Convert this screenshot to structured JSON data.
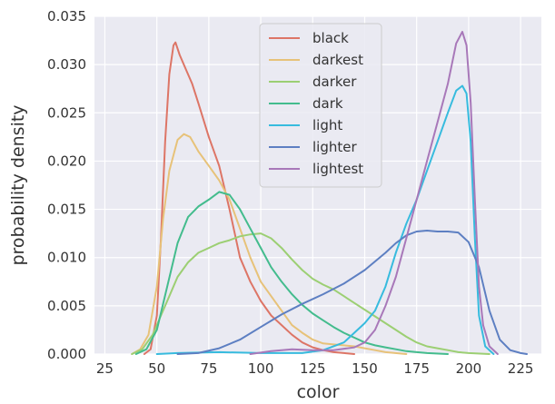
{
  "chart_data": {
    "type": "line",
    "title": "",
    "xlabel": "color",
    "ylabel": "probability density",
    "xlim": [
      20,
      235
    ],
    "ylim": [
      0,
      0.035
    ],
    "xticks": [
      25,
      50,
      75,
      100,
      125,
      150,
      175,
      200,
      225
    ],
    "xtick_labels": [
      "25",
      "50",
      "75",
      "100",
      "125",
      "150",
      "175",
      "200",
      "225"
    ],
    "yticks": [
      0,
      0.005,
      0.01,
      0.015,
      0.02,
      0.025,
      0.03,
      0.035
    ],
    "ytick_labels": [
      "0.000",
      "0.005",
      "0.010",
      "0.015",
      "0.020",
      "0.025",
      "0.030",
      "0.035"
    ],
    "grid": true,
    "legend_position": "top-center",
    "series": [
      {
        "name": "black",
        "color": "#dd7566",
        "points": [
          [
            44,
            0
          ],
          [
            47,
            0.0005
          ],
          [
            50,
            0.004
          ],
          [
            52,
            0.012
          ],
          [
            54,
            0.022
          ],
          [
            56,
            0.029
          ],
          [
            58,
            0.032
          ],
          [
            59,
            0.0323
          ],
          [
            61,
            0.031
          ],
          [
            64,
            0.0295
          ],
          [
            67,
            0.028
          ],
          [
            70,
            0.026
          ],
          [
            75,
            0.0225
          ],
          [
            80,
            0.0195
          ],
          [
            85,
            0.015
          ],
          [
            90,
            0.01
          ],
          [
            95,
            0.0075
          ],
          [
            100,
            0.0055
          ],
          [
            105,
            0.004
          ],
          [
            110,
            0.003
          ],
          [
            115,
            0.002
          ],
          [
            120,
            0.0012
          ],
          [
            125,
            0.0007
          ],
          [
            130,
            0.0004
          ],
          [
            135,
            0.0002
          ],
          [
            140,
            0.0001
          ],
          [
            145,
            0
          ]
        ]
      },
      {
        "name": "darkest",
        "color": "#e7c279",
        "points": [
          [
            38,
            0
          ],
          [
            42,
            0.0005
          ],
          [
            46,
            0.002
          ],
          [
            50,
            0.007
          ],
          [
            53,
            0.014
          ],
          [
            56,
            0.019
          ],
          [
            60,
            0.0222
          ],
          [
            63,
            0.0228
          ],
          [
            66,
            0.0225
          ],
          [
            70,
            0.021
          ],
          [
            75,
            0.0195
          ],
          [
            80,
            0.018
          ],
          [
            85,
            0.016
          ],
          [
            90,
            0.013
          ],
          [
            95,
            0.01
          ],
          [
            100,
            0.0075
          ],
          [
            105,
            0.006
          ],
          [
            110,
            0.0045
          ],
          [
            115,
            0.003
          ],
          [
            120,
            0.0022
          ],
          [
            125,
            0.0015
          ],
          [
            130,
            0.0011
          ],
          [
            135,
            0.001
          ],
          [
            140,
            0.0009
          ],
          [
            145,
            0.0008
          ],
          [
            150,
            0.0006
          ],
          [
            155,
            0.0004
          ],
          [
            160,
            0.0002
          ],
          [
            170,
            0
          ]
        ]
      },
      {
        "name": "darker",
        "color": "#9ccf73",
        "points": [
          [
            38,
            0
          ],
          [
            43,
            0.0005
          ],
          [
            48,
            0.002
          ],
          [
            52,
            0.004
          ],
          [
            56,
            0.006
          ],
          [
            60,
            0.008
          ],
          [
            65,
            0.0095
          ],
          [
            70,
            0.0105
          ],
          [
            75,
            0.011
          ],
          [
            80,
            0.0115
          ],
          [
            85,
            0.0118
          ],
          [
            90,
            0.0122
          ],
          [
            95,
            0.0124
          ],
          [
            100,
            0.0125
          ],
          [
            105,
            0.012
          ],
          [
            110,
            0.011
          ],
          [
            115,
            0.0098
          ],
          [
            120,
            0.0087
          ],
          [
            125,
            0.0078
          ],
          [
            130,
            0.0072
          ],
          [
            135,
            0.0067
          ],
          [
            140,
            0.006
          ],
          [
            145,
            0.0053
          ],
          [
            150,
            0.0046
          ],
          [
            155,
            0.0039
          ],
          [
            160,
            0.0032
          ],
          [
            165,
            0.0025
          ],
          [
            170,
            0.0018
          ],
          [
            175,
            0.0012
          ],
          [
            180,
            0.0008
          ],
          [
            185,
            0.0006
          ],
          [
            190,
            0.0004
          ],
          [
            195,
            0.0002
          ],
          [
            200,
            0.0001
          ],
          [
            210,
            0
          ]
        ]
      },
      {
        "name": "dark",
        "color": "#43bc8d",
        "points": [
          [
            40,
            0
          ],
          [
            45,
            0.0005
          ],
          [
            50,
            0.0025
          ],
          [
            55,
            0.007
          ],
          [
            60,
            0.0115
          ],
          [
            65,
            0.0142
          ],
          [
            70,
            0.0153
          ],
          [
            75,
            0.016
          ],
          [
            80,
            0.0168
          ],
          [
            85,
            0.0165
          ],
          [
            90,
            0.015
          ],
          [
            95,
            0.013
          ],
          [
            100,
            0.011
          ],
          [
            105,
            0.009
          ],
          [
            110,
            0.0075
          ],
          [
            115,
            0.0062
          ],
          [
            120,
            0.0051
          ],
          [
            125,
            0.0042
          ],
          [
            130,
            0.0035
          ],
          [
            135,
            0.0028
          ],
          [
            140,
            0.0022
          ],
          [
            145,
            0.0017
          ],
          [
            150,
            0.0012
          ],
          [
            155,
            0.0009
          ],
          [
            160,
            0.0007
          ],
          [
            165,
            0.0005
          ],
          [
            170,
            0.0003
          ],
          [
            175,
            0.0002
          ],
          [
            180,
            0.0001
          ],
          [
            190,
            0
          ]
        ]
      },
      {
        "name": "light",
        "color": "#37bbde",
        "points": [
          [
            50,
            0
          ],
          [
            60,
            0.0001
          ],
          [
            80,
            0.0002
          ],
          [
            100,
            0.0001
          ],
          [
            120,
            0.0001
          ],
          [
            130,
            0.0004
          ],
          [
            140,
            0.0012
          ],
          [
            145,
            0.0022
          ],
          [
            150,
            0.0032
          ],
          [
            155,
            0.0045
          ],
          [
            160,
            0.007
          ],
          [
            165,
            0.0105
          ],
          [
            170,
            0.0135
          ],
          [
            175,
            0.016
          ],
          [
            180,
            0.019
          ],
          [
            185,
            0.022
          ],
          [
            190,
            0.025
          ],
          [
            194,
            0.0273
          ],
          [
            197,
            0.0278
          ],
          [
            199,
            0.027
          ],
          [
            201,
            0.022
          ],
          [
            203,
            0.012
          ],
          [
            205,
            0.004
          ],
          [
            208,
            0.0008
          ],
          [
            212,
            0
          ]
        ]
      },
      {
        "name": "lighter",
        "color": "#5d7fc2",
        "points": [
          [
            60,
            0
          ],
          [
            70,
            0.0001
          ],
          [
            80,
            0.0006
          ],
          [
            90,
            0.0015
          ],
          [
            100,
            0.0028
          ],
          [
            110,
            0.0041
          ],
          [
            120,
            0.0052
          ],
          [
            130,
            0.0062
          ],
          [
            140,
            0.0073
          ],
          [
            150,
            0.0087
          ],
          [
            160,
            0.0105
          ],
          [
            165,
            0.0115
          ],
          [
            170,
            0.0123
          ],
          [
            175,
            0.0127
          ],
          [
            180,
            0.0128
          ],
          [
            185,
            0.0127
          ],
          [
            190,
            0.0127
          ],
          [
            195,
            0.0126
          ],
          [
            200,
            0.0116
          ],
          [
            205,
            0.009
          ],
          [
            210,
            0.0045
          ],
          [
            215,
            0.0015
          ],
          [
            220,
            0.0004
          ],
          [
            225,
            0.0001
          ],
          [
            228,
            0
          ]
        ]
      },
      {
        "name": "lightest",
        "color": "#a878b9",
        "points": [
          [
            95,
            0
          ],
          [
            105,
            0.0003
          ],
          [
            115,
            0.0005
          ],
          [
            125,
            0.0004
          ],
          [
            135,
            0.0004
          ],
          [
            145,
            0.0007
          ],
          [
            150,
            0.0012
          ],
          [
            155,
            0.0025
          ],
          [
            160,
            0.005
          ],
          [
            165,
            0.008
          ],
          [
            170,
            0.012
          ],
          [
            175,
            0.016
          ],
          [
            180,
            0.02
          ],
          [
            185,
            0.024
          ],
          [
            190,
            0.028
          ],
          [
            194,
            0.0322
          ],
          [
            197,
            0.0334
          ],
          [
            199,
            0.032
          ],
          [
            201,
            0.026
          ],
          [
            203,
            0.016
          ],
          [
            205,
            0.007
          ],
          [
            207,
            0.003
          ],
          [
            210,
            0.0008
          ],
          [
            214,
            0
          ]
        ]
      }
    ]
  }
}
